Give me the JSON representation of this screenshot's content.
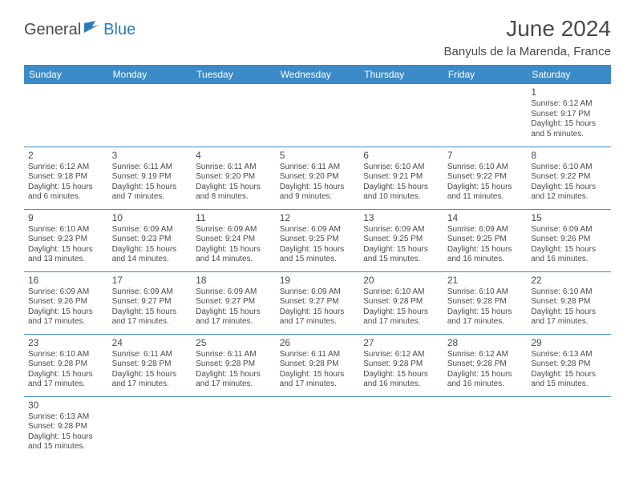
{
  "logo": {
    "part1": "General",
    "part2": "Blue"
  },
  "title": "June 2024",
  "location": "Banyuls de la Marenda, France",
  "weekdays": [
    "Sunday",
    "Monday",
    "Tuesday",
    "Wednesday",
    "Thursday",
    "Friday",
    "Saturday"
  ],
  "colors": {
    "header_bg": "#3b8bc8",
    "header_text": "#ffffff",
    "border": "#3b8bc8",
    "text": "#4a4a4a",
    "logo_blue": "#2b7bbf"
  },
  "typography": {
    "title_fontsize": 28,
    "location_fontsize": 15,
    "weekday_fontsize": 12,
    "daynum_fontsize": 12,
    "body_fontsize": 10
  },
  "grid": {
    "rows": 6,
    "cols": 7,
    "first_day_col": 6,
    "days_in_month": 30
  },
  "days": {
    "1": {
      "sunrise": "6:12 AM",
      "sunset": "9:17 PM",
      "daylight": "15 hours and 5 minutes."
    },
    "2": {
      "sunrise": "6:12 AM",
      "sunset": "9:18 PM",
      "daylight": "15 hours and 6 minutes."
    },
    "3": {
      "sunrise": "6:11 AM",
      "sunset": "9:19 PM",
      "daylight": "15 hours and 7 minutes."
    },
    "4": {
      "sunrise": "6:11 AM",
      "sunset": "9:20 PM",
      "daylight": "15 hours and 8 minutes."
    },
    "5": {
      "sunrise": "6:11 AM",
      "sunset": "9:20 PM",
      "daylight": "15 hours and 9 minutes."
    },
    "6": {
      "sunrise": "6:10 AM",
      "sunset": "9:21 PM",
      "daylight": "15 hours and 10 minutes."
    },
    "7": {
      "sunrise": "6:10 AM",
      "sunset": "9:22 PM",
      "daylight": "15 hours and 11 minutes."
    },
    "8": {
      "sunrise": "6:10 AM",
      "sunset": "9:22 PM",
      "daylight": "15 hours and 12 minutes."
    },
    "9": {
      "sunrise": "6:10 AM",
      "sunset": "9:23 PM",
      "daylight": "15 hours and 13 minutes."
    },
    "10": {
      "sunrise": "6:09 AM",
      "sunset": "9:23 PM",
      "daylight": "15 hours and 14 minutes."
    },
    "11": {
      "sunrise": "6:09 AM",
      "sunset": "9:24 PM",
      "daylight": "15 hours and 14 minutes."
    },
    "12": {
      "sunrise": "6:09 AM",
      "sunset": "9:25 PM",
      "daylight": "15 hours and 15 minutes."
    },
    "13": {
      "sunrise": "6:09 AM",
      "sunset": "9:25 PM",
      "daylight": "15 hours and 15 minutes."
    },
    "14": {
      "sunrise": "6:09 AM",
      "sunset": "9:25 PM",
      "daylight": "15 hours and 16 minutes."
    },
    "15": {
      "sunrise": "6:09 AM",
      "sunset": "9:26 PM",
      "daylight": "15 hours and 16 minutes."
    },
    "16": {
      "sunrise": "6:09 AM",
      "sunset": "9:26 PM",
      "daylight": "15 hours and 17 minutes."
    },
    "17": {
      "sunrise": "6:09 AM",
      "sunset": "9:27 PM",
      "daylight": "15 hours and 17 minutes."
    },
    "18": {
      "sunrise": "6:09 AM",
      "sunset": "9:27 PM",
      "daylight": "15 hours and 17 minutes."
    },
    "19": {
      "sunrise": "6:09 AM",
      "sunset": "9:27 PM",
      "daylight": "15 hours and 17 minutes."
    },
    "20": {
      "sunrise": "6:10 AM",
      "sunset": "9:28 PM",
      "daylight": "15 hours and 17 minutes."
    },
    "21": {
      "sunrise": "6:10 AM",
      "sunset": "9:28 PM",
      "daylight": "15 hours and 17 minutes."
    },
    "22": {
      "sunrise": "6:10 AM",
      "sunset": "9:28 PM",
      "daylight": "15 hours and 17 minutes."
    },
    "23": {
      "sunrise": "6:10 AM",
      "sunset": "9:28 PM",
      "daylight": "15 hours and 17 minutes."
    },
    "24": {
      "sunrise": "6:11 AM",
      "sunset": "9:28 PM",
      "daylight": "15 hours and 17 minutes."
    },
    "25": {
      "sunrise": "6:11 AM",
      "sunset": "9:28 PM",
      "daylight": "15 hours and 17 minutes."
    },
    "26": {
      "sunrise": "6:11 AM",
      "sunset": "9:28 PM",
      "daylight": "15 hours and 17 minutes."
    },
    "27": {
      "sunrise": "6:12 AM",
      "sunset": "9:28 PM",
      "daylight": "15 hours and 16 minutes."
    },
    "28": {
      "sunrise": "6:12 AM",
      "sunset": "9:28 PM",
      "daylight": "15 hours and 16 minutes."
    },
    "29": {
      "sunrise": "6:13 AM",
      "sunset": "9:28 PM",
      "daylight": "15 hours and 15 minutes."
    },
    "30": {
      "sunrise": "6:13 AM",
      "sunset": "9:28 PM",
      "daylight": "15 hours and 15 minutes."
    }
  },
  "labels": {
    "sunrise": "Sunrise:",
    "sunset": "Sunset:",
    "daylight": "Daylight:"
  }
}
